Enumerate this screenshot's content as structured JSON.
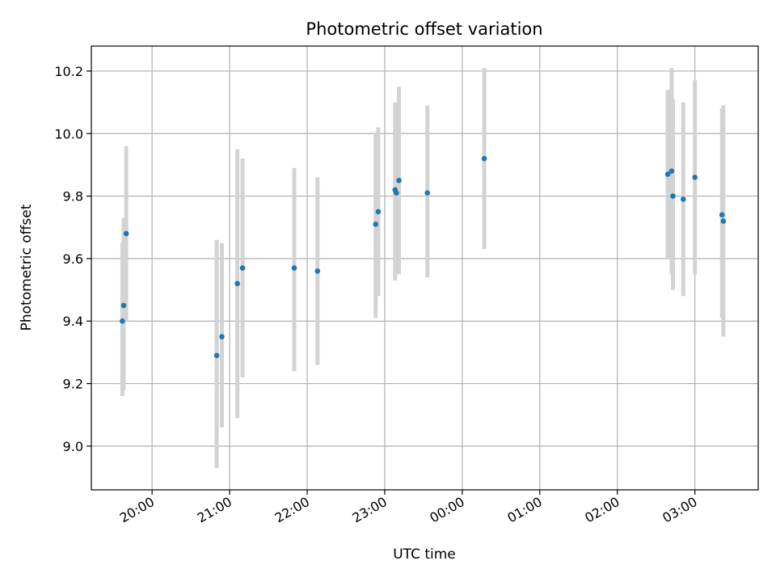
{
  "chart_data": {
    "type": "scatter",
    "title": "Photometric offset variation",
    "xlabel": "UTC time",
    "ylabel": "Photometric offset",
    "x_axis": {
      "kind": "time",
      "range": [
        "19:13",
        "03:49"
      ],
      "tick_times": [
        "20:00",
        "21:00",
        "22:00",
        "23:00",
        "00:00",
        "01:00",
        "02:00",
        "03:00"
      ],
      "tick_labels": [
        "20:00",
        "21:00",
        "22:00",
        "23:00",
        "00:00",
        "01:00",
        "02:00",
        "03:00"
      ]
    },
    "y_axis": {
      "range": [
        8.86,
        10.28
      ],
      "ticks": [
        9.0,
        9.2,
        9.4,
        9.6,
        9.8,
        10.0,
        10.2
      ],
      "tick_labels": [
        "9.0",
        "9.2",
        "9.4",
        "9.6",
        "9.8",
        "10.0",
        "10.2"
      ]
    },
    "grid": true,
    "marker_color": "#1f77b4",
    "errorbar_color": "#d3d3d3",
    "points": [
      {
        "t": "19:37",
        "y": 9.4,
        "lo": 9.16,
        "hi": 9.65
      },
      {
        "t": "19:38",
        "y": 9.45,
        "lo": 9.18,
        "hi": 9.73
      },
      {
        "t": "19:40",
        "y": 9.68,
        "lo": 9.4,
        "hi": 9.96
      },
      {
        "t": "20:50",
        "y": 9.29,
        "lo": 8.93,
        "hi": 9.66
      },
      {
        "t": "20:54",
        "y": 9.35,
        "lo": 9.06,
        "hi": 9.65
      },
      {
        "t": "21:06",
        "y": 9.52,
        "lo": 9.09,
        "hi": 9.95
      },
      {
        "t": "21:10",
        "y": 9.57,
        "lo": 9.22,
        "hi": 9.92
      },
      {
        "t": "21:50",
        "y": 9.57,
        "lo": 9.24,
        "hi": 9.89
      },
      {
        "t": "22:08",
        "y": 9.56,
        "lo": 9.26,
        "hi": 9.86
      },
      {
        "t": "22:53",
        "y": 9.71,
        "lo": 9.41,
        "hi": 10.0
      },
      {
        "t": "22:55",
        "y": 9.75,
        "lo": 9.48,
        "hi": 10.02
      },
      {
        "t": "23:08",
        "y": 9.82,
        "lo": 9.53,
        "hi": 10.1
      },
      {
        "t": "23:09",
        "y": 9.81,
        "lo": 9.55,
        "hi": 10.08
      },
      {
        "t": "23:11",
        "y": 9.85,
        "lo": 9.55,
        "hi": 10.15
      },
      {
        "t": "23:33",
        "y": 9.81,
        "lo": 9.54,
        "hi": 10.09
      },
      {
        "t": "00:17",
        "y": 9.92,
        "lo": 9.63,
        "hi": 10.21
      },
      {
        "t": "02:39",
        "y": 9.87,
        "lo": 9.6,
        "hi": 10.14
      },
      {
        "t": "02:42",
        "y": 9.88,
        "lo": 9.55,
        "hi": 10.21
      },
      {
        "t": "02:43",
        "y": 9.8,
        "lo": 9.5,
        "hi": 10.11
      },
      {
        "t": "02:51",
        "y": 9.79,
        "lo": 9.48,
        "hi": 10.1
      },
      {
        "t": "03:00",
        "y": 9.86,
        "lo": 9.55,
        "hi": 10.17
      },
      {
        "t": "03:21",
        "y": 9.74,
        "lo": 9.41,
        "hi": 10.08
      },
      {
        "t": "03:22",
        "y": 9.72,
        "lo": 9.35,
        "hi": 10.09
      }
    ]
  }
}
